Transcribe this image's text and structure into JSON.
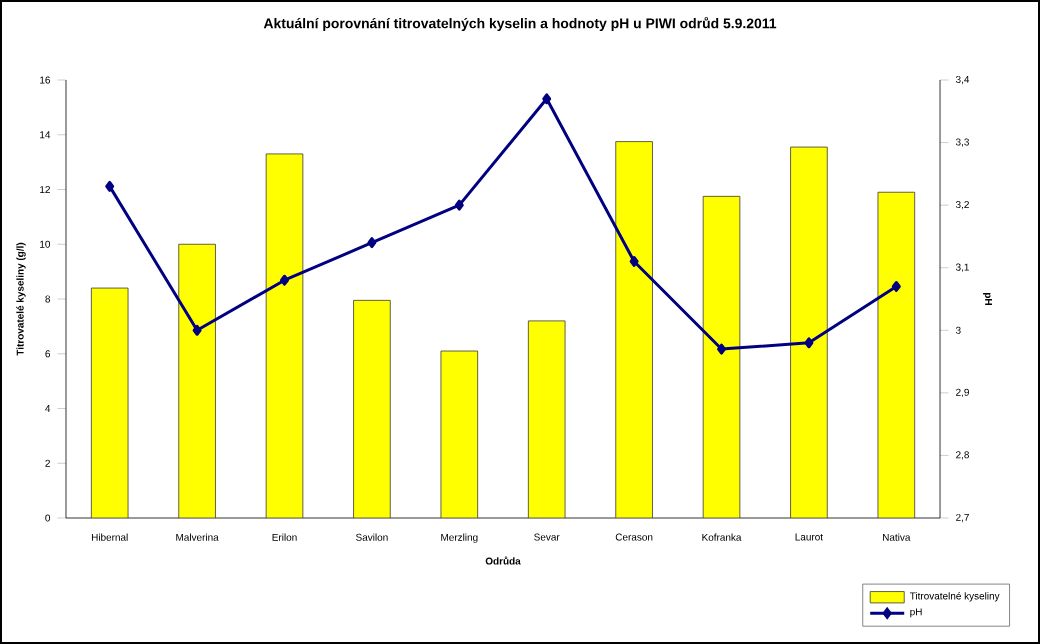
{
  "chart_data": {
    "type": "bar",
    "title": "Aktuální porovnání titrovatelných kyselin a hodnoty pH u PIWI odrůd 5.9.2011",
    "xlabel": "Odrůda",
    "ylabel": "Titrovatelé kyseliny (g/l)",
    "y2label": "pH",
    "categories": [
      "Hibernal",
      "Malverina",
      "Erilon",
      "Savilon",
      "Merzling",
      "Sevar",
      "Cerason",
      "Kofranka",
      "Laurot",
      "Nativa"
    ],
    "series": [
      {
        "name": "Titrovatelné kyseliny",
        "color": "#ffff00",
        "values": [
          8.4,
          10.0,
          13.3,
          7.95,
          6.1,
          7.2,
          13.75,
          11.75,
          13.55,
          11.9
        ]
      },
      {
        "name": "pH",
        "type": "line",
        "axis": "y2",
        "color": "#000080",
        "marker": "diamond",
        "values": [
          3.23,
          3.0,
          3.08,
          3.14,
          3.2,
          3.37,
          3.11,
          2.97,
          2.98,
          3.07
        ]
      }
    ],
    "ylim": [
      0,
      16
    ],
    "yticks": [
      0,
      2,
      4,
      6,
      8,
      10,
      12,
      14,
      16
    ],
    "y2lim": [
      2.7,
      3.4
    ],
    "y2ticks": [
      {
        "value": 2.7,
        "label": "2,7"
      },
      {
        "value": 2.8,
        "label": "2,8"
      },
      {
        "value": 2.9,
        "label": "2,9"
      },
      {
        "value": 3.0,
        "label": "3"
      },
      {
        "value": 3.1,
        "label": "3,1"
      },
      {
        "value": 3.2,
        "label": "3,2"
      },
      {
        "value": 3.3,
        "label": "3,3"
      },
      {
        "value": 3.4,
        "label": "3,4"
      }
    ],
    "grid": false,
    "legend": "bottom right"
  }
}
